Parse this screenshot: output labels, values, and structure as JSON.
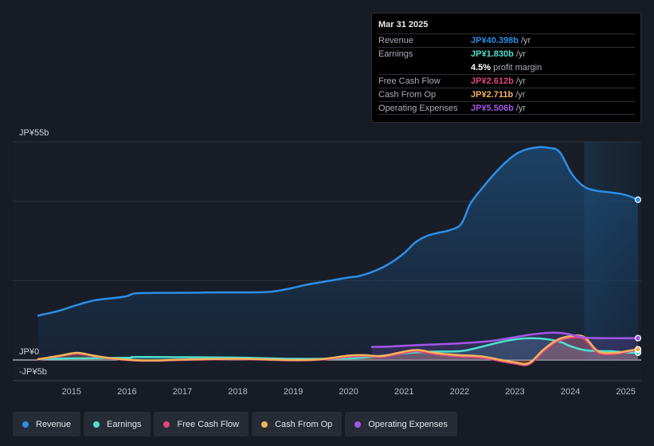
{
  "chart_data": {
    "type": "area",
    "title": "",
    "units": "JP¥ billions",
    "ylim": [
      -5,
      55
    ],
    "y_tick_labels": [
      {
        "value": 55,
        "label": "JP¥55b"
      },
      {
        "value": 0,
        "label": "JP¥0"
      },
      {
        "value": -5,
        "label": "-JP¥5b"
      }
    ],
    "x_ticks": [
      {
        "value": 2015.0,
        "label": "2015"
      },
      {
        "value": 2016.0,
        "label": "2016"
      },
      {
        "value": 2017.0,
        "label": "2017"
      },
      {
        "value": 2018.0,
        "label": "2018"
      },
      {
        "value": 2019.0,
        "label": "2019"
      },
      {
        "value": 2020.0,
        "label": "2020"
      },
      {
        "value": 2021.0,
        "label": "2021"
      },
      {
        "value": 2022.0,
        "label": "2022"
      },
      {
        "value": 2023.0,
        "label": "2023"
      },
      {
        "value": 2024.0,
        "label": "2024"
      },
      {
        "value": 2025.0,
        "label": "2025"
      }
    ],
    "xlim": [
      2014.4,
      2025.25
    ],
    "future_shade_start": 2024.25,
    "series": [
      {
        "name": "Revenue",
        "color": "#2d8ee8",
        "fill": true,
        "points": [
          [
            2014.4,
            11.2
          ],
          [
            2014.75,
            12.3
          ],
          [
            2015.0,
            13.4
          ],
          [
            2015.4,
            15.0
          ],
          [
            2015.75,
            15.6
          ],
          [
            2016.0,
            16.1
          ],
          [
            2016.15,
            16.8
          ],
          [
            2016.5,
            16.9
          ],
          [
            2017.0,
            16.95
          ],
          [
            2017.5,
            17.0
          ],
          [
            2018.0,
            17.05
          ],
          [
            2018.5,
            17.1
          ],
          [
            2018.75,
            17.5
          ],
          [
            2019.0,
            18.2
          ],
          [
            2019.25,
            19.0
          ],
          [
            2019.5,
            19.6
          ],
          [
            2019.75,
            20.2
          ],
          [
            2020.0,
            20.8
          ],
          [
            2020.2,
            21.2
          ],
          [
            2020.5,
            22.6
          ],
          [
            2020.75,
            24.4
          ],
          [
            2021.0,
            26.9
          ],
          [
            2021.2,
            29.6
          ],
          [
            2021.4,
            31.2
          ],
          [
            2021.6,
            32.0
          ],
          [
            2021.8,
            32.6
          ],
          [
            2022.0,
            33.8
          ],
          [
            2022.1,
            36.2
          ],
          [
            2022.2,
            39.5
          ],
          [
            2022.45,
            44.0
          ],
          [
            2022.7,
            48.0
          ],
          [
            2022.95,
            51.2
          ],
          [
            2023.15,
            52.8
          ],
          [
            2023.4,
            53.6
          ],
          [
            2023.6,
            53.5
          ],
          [
            2023.8,
            52.5
          ],
          [
            2024.0,
            47.5
          ],
          [
            2024.15,
            44.8
          ],
          [
            2024.3,
            43.3
          ],
          [
            2024.5,
            42.6
          ],
          [
            2024.75,
            42.2
          ],
          [
            2025.0,
            41.6
          ],
          [
            2025.22,
            40.4
          ]
        ]
      },
      {
        "name": "Earnings",
        "color": "#4fe0cf",
        "fill": true,
        "points": [
          [
            2014.4,
            0.2
          ],
          [
            2015.0,
            0.4
          ],
          [
            2016.0,
            0.55
          ],
          [
            2016.15,
            0.75
          ],
          [
            2017.0,
            0.7
          ],
          [
            2018.0,
            0.6
          ],
          [
            2019.0,
            0.3
          ],
          [
            2020.0,
            0.4
          ],
          [
            2020.5,
            0.9
          ],
          [
            2021.0,
            1.7
          ],
          [
            2021.5,
            2.1
          ],
          [
            2022.0,
            2.2
          ],
          [
            2022.3,
            3.0
          ],
          [
            2022.7,
            4.4
          ],
          [
            2023.0,
            5.2
          ],
          [
            2023.3,
            5.5
          ],
          [
            2023.6,
            5.2
          ],
          [
            2023.85,
            4.4
          ],
          [
            2024.0,
            3.5
          ],
          [
            2024.3,
            2.4
          ],
          [
            2024.75,
            2.2
          ],
          [
            2025.0,
            1.9
          ],
          [
            2025.22,
            1.83
          ]
        ]
      },
      {
        "name": "Free Cash Flow",
        "color": "#e0467c",
        "fill": true,
        "points": [
          [
            2014.4,
            0.1
          ],
          [
            2014.8,
            1.0
          ],
          [
            2015.1,
            1.6
          ],
          [
            2015.4,
            1.0
          ],
          [
            2015.75,
            0.3
          ],
          [
            2016.3,
            -0.2
          ],
          [
            2017.0,
            0.0
          ],
          [
            2018.0,
            0.2
          ],
          [
            2019.0,
            -0.1
          ],
          [
            2019.5,
            0.1
          ],
          [
            2020.0,
            0.8
          ],
          [
            2020.3,
            1.0
          ],
          [
            2020.6,
            0.8
          ],
          [
            2021.0,
            1.8
          ],
          [
            2021.25,
            2.2
          ],
          [
            2021.6,
            1.4
          ],
          [
            2022.0,
            0.9
          ],
          [
            2022.4,
            0.6
          ],
          [
            2022.75,
            -0.3
          ],
          [
            2023.0,
            -0.9
          ],
          [
            2023.25,
            -1.1
          ],
          [
            2023.5,
            2.0
          ],
          [
            2023.75,
            4.6
          ],
          [
            2024.0,
            5.6
          ],
          [
            2024.25,
            5.3
          ],
          [
            2024.5,
            1.8
          ],
          [
            2024.8,
            1.5
          ],
          [
            2025.0,
            2.0
          ],
          [
            2025.22,
            2.61
          ]
        ]
      },
      {
        "name": "Cash From Op",
        "color": "#f4b35c",
        "fill": true,
        "points": [
          [
            2014.4,
            0.2
          ],
          [
            2014.8,
            1.1
          ],
          [
            2015.1,
            1.8
          ],
          [
            2015.4,
            1.1
          ],
          [
            2015.75,
            0.4
          ],
          [
            2016.3,
            -0.1
          ],
          [
            2017.0,
            0.1
          ],
          [
            2018.0,
            0.3
          ],
          [
            2019.0,
            0.0
          ],
          [
            2019.5,
            0.2
          ],
          [
            2020.0,
            1.1
          ],
          [
            2020.3,
            1.2
          ],
          [
            2020.6,
            1.0
          ],
          [
            2021.0,
            2.1
          ],
          [
            2021.25,
            2.5
          ],
          [
            2021.6,
            1.7
          ],
          [
            2022.0,
            1.2
          ],
          [
            2022.4,
            0.9
          ],
          [
            2022.75,
            0.0
          ],
          [
            2023.0,
            -0.6
          ],
          [
            2023.25,
            -0.8
          ],
          [
            2023.5,
            2.4
          ],
          [
            2023.75,
            5.0
          ],
          [
            2024.0,
            6.0
          ],
          [
            2024.25,
            5.8
          ],
          [
            2024.5,
            2.2
          ],
          [
            2024.8,
            1.8
          ],
          [
            2025.0,
            2.2
          ],
          [
            2025.22,
            2.71
          ]
        ]
      },
      {
        "name": "Operating Expenses",
        "color": "#a356e8",
        "fill": true,
        "points": [
          [
            2020.42,
            3.3
          ],
          [
            2020.75,
            3.4
          ],
          [
            2021.0,
            3.6
          ],
          [
            2021.5,
            3.9
          ],
          [
            2022.0,
            4.2
          ],
          [
            2022.5,
            4.7
          ],
          [
            2022.85,
            5.4
          ],
          [
            2023.15,
            6.1
          ],
          [
            2023.4,
            6.6
          ],
          [
            2023.7,
            6.9
          ],
          [
            2023.9,
            6.7
          ],
          [
            2024.1,
            6.1
          ],
          [
            2024.3,
            5.6
          ],
          [
            2024.6,
            5.5
          ],
          [
            2025.0,
            5.5
          ],
          [
            2025.22,
            5.506
          ]
        ]
      }
    ]
  },
  "tooltip": {
    "date": "Mar 31 2025",
    "rows": [
      {
        "label": "Revenue",
        "value": "JP¥40.398b",
        "unit": "/yr",
        "color": "#2d8ee8"
      },
      {
        "label": "Earnings",
        "value": "JP¥1.830b",
        "unit": "/yr",
        "color": "#4fe0cf"
      },
      {
        "label": "",
        "value": "4.5%",
        "unit": "profit margin",
        "color": "#ffffff"
      },
      {
        "label": "Free Cash Flow",
        "value": "JP¥2.612b",
        "unit": "/yr",
        "color": "#e0467c"
      },
      {
        "label": "Cash From Op",
        "value": "JP¥2.711b",
        "unit": "/yr",
        "color": "#f4b35c"
      },
      {
        "label": "Operating Expenses",
        "value": "JP¥5.506b",
        "unit": "/yr",
        "color": "#a356e8"
      }
    ]
  },
  "legend": [
    {
      "label": "Revenue",
      "color": "#2d8ee8"
    },
    {
      "label": "Earnings",
      "color": "#4fe0cf"
    },
    {
      "label": "Free Cash Flow",
      "color": "#e0467c"
    },
    {
      "label": "Cash From Op",
      "color": "#f4b35c"
    },
    {
      "label": "Operating Expenses",
      "color": "#a356e8"
    }
  ]
}
